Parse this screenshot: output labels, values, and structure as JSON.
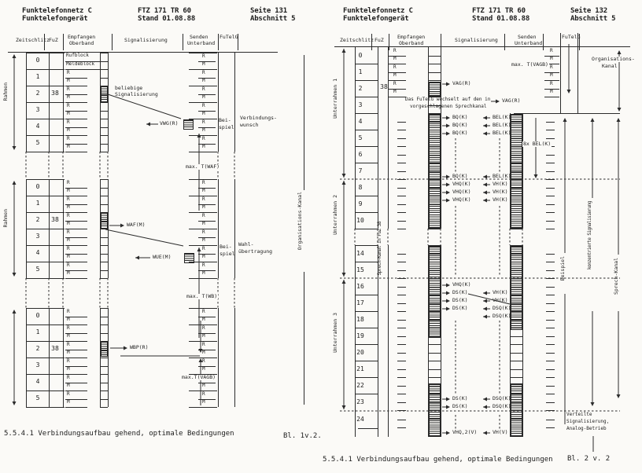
{
  "pages": [
    {
      "header": {
        "product1": "Funktelefonnetz C",
        "product2": "Funktelefongerät",
        "doc1": "FTZ 171 TR 60",
        "doc2": "Stand 01.08.88",
        "page": "Seite 131",
        "section": "Abschnitt 5"
      },
      "table_headers": {
        "zeitschlitz": "Zeitschlitz",
        "fuz": "FuZ",
        "empfangen1": "Empfangen",
        "empfangen2": "Oberband",
        "signalisierung": "Signalisierung",
        "senden1": "Senden",
        "senden2": "Unterband",
        "futelg": "FuTelG"
      },
      "fuz_value": "38",
      "slot_numbers": [
        "0",
        "1",
        "2",
        "3",
        "4",
        "5"
      ],
      "rm": {
        "r": "R",
        "m": "M"
      },
      "slot0_labels": {
        "r": "Rufblock",
        "m": "Meldeblock"
      },
      "frame_label": "Rahmen",
      "labels": {
        "beliebige1": "beliebige",
        "beliebige2": "Signalisierung",
        "vwg": "VWG(R)",
        "waf": "WAF(M)",
        "wue": "WUE(M)",
        "wbp": "WBP(R)",
        "beispiel1": "Bei-",
        "beispiel2": "spiel",
        "verbindung1": "Verbindungs-",
        "verbindung2": "wunsch",
        "wahl1": "Wahl-",
        "wahl2": "übertragung",
        "max_twaf": "max. T(WAF)",
        "max_twb": "max. T(WB)",
        "max_tvagb": "max.T(VAGB)",
        "orgkanal": "Organisations-Kanal"
      },
      "caption": "5.5.4.1 Verbindungsaufbau gehend, optimale Bedingungen",
      "sheet": "Bl. 1v.2."
    },
    {
      "header": {
        "product1": "Funktelefonnetz C",
        "product2": "Funktelefongerät",
        "doc1": "FTZ 171 TR 60",
        "doc2": "Stand 01.08.88",
        "page": "Seite 132",
        "section": "Abschnitt 5"
      },
      "table_headers": {
        "zeitschlitz": "Zeitschlitz",
        "fuz": "FuZ",
        "empfangen1": "Empfangen",
        "empfangen2": "Oberband",
        "signalisierung": "Signalisierung",
        "senden1": "Senden",
        "senden2": "Unterband",
        "futelg": "FuTelG"
      },
      "fuz_value": "38",
      "slot_numbers": [
        "0",
        "1",
        "2",
        "3",
        "4",
        "5",
        "6",
        "7",
        "8",
        "9",
        "10",
        "14",
        "15",
        "16",
        "17",
        "18",
        "19",
        "20",
        "21",
        "22",
        "23",
        "24"
      ],
      "rm": {
        "r": "R",
        "m": "M"
      },
      "subframe_labels": [
        "Unterrahmen 1",
        "Unterrahmen 2",
        "Unterrahmen 3"
      ],
      "sprechkanal_fuz": "Sprech-Kanal in FuZ 38",
      "labels": {
        "vag": "VAG(R)",
        "wechsel1": "Das FuTelG wechselt auf den in",
        "wechsel2": "vorgeschlagenen Sprechkanal",
        "bq": "BQ(K)",
        "bel": "BEL(K)",
        "bel8": "8x BEL(K)",
        "vhq": "VHQ(K)",
        "vh": "VH(K)",
        "ds": "DS(K)",
        "dsq": "DSQ(K)",
        "vhq2": "VHQ,2(V)",
        "vhv": "VH(V)",
        "max_tvagb": "max. T(VAGB)",
        "orgkanal1": "Organisations-",
        "orgkanal2": "Kanal",
        "beispiel": "Beispiel",
        "konz": "konzentrierte Signalisierung",
        "sprechkanal": "Sprech-Kanal",
        "verteilte1": "Verteilte",
        "verteilte2": "Signalisierung,",
        "verteilte3": "Analog-Betrieb"
      },
      "caption": "5.5.4.1 Verbindungsaufbau gehend, optimale Bedingungen",
      "sheet": "Bl. 2 v. 2"
    }
  ]
}
